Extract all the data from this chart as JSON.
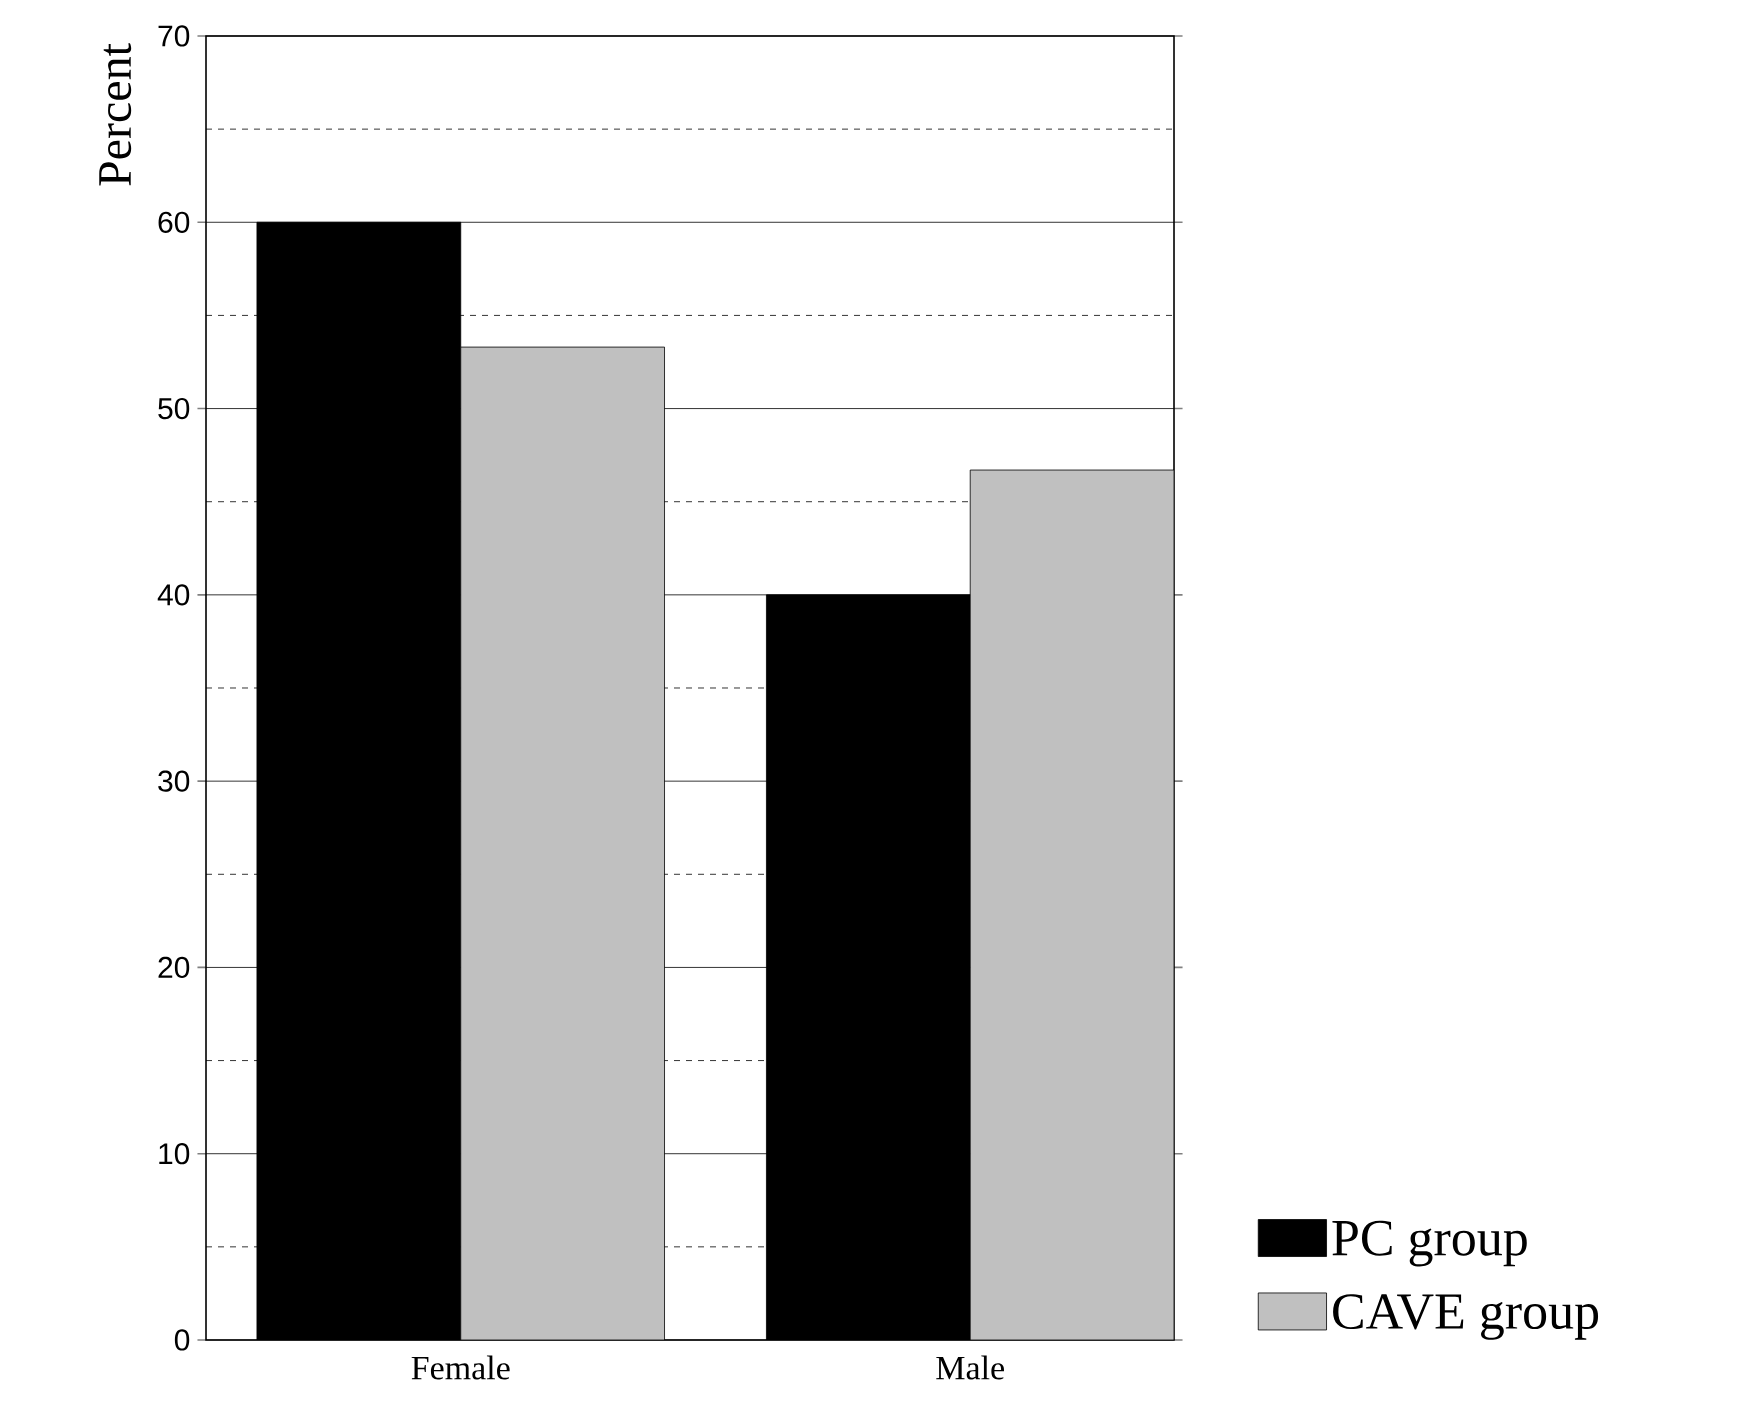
{
  "chart_data": {
    "type": "bar",
    "ylabel": "Percent",
    "categories": [
      "Female",
      "Male"
    ],
    "series": [
      {
        "name": "PC group",
        "color": "#000000",
        "values": [
          60,
          40
        ]
      },
      {
        "name": "CAVE group",
        "color": "#c0c0c0",
        "values": [
          53.3,
          46.7
        ]
      }
    ],
    "ylim": [
      0,
      70
    ],
    "yticks": [
      0,
      10,
      20,
      30,
      40,
      50,
      60,
      70
    ],
    "grid": "y",
    "legend": "bottom right"
  }
}
